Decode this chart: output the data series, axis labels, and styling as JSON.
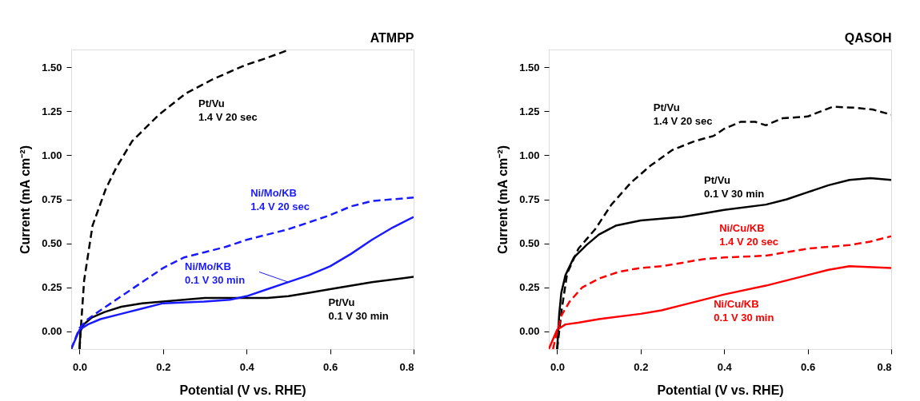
{
  "chart_data": [
    {
      "type": "line",
      "title": "ATMPP",
      "xlabel": "Potential (V vs. RHE)",
      "ylabel": "Current (mA cm⁻²)",
      "xlim": [
        -0.02,
        0.8
      ],
      "ylim": [
        -0.1,
        1.6
      ],
      "xticks": [
        {
          "value": 0,
          "label": "0.0"
        },
        0.2,
        0.4,
        0.6,
        0.8
      ],
      "yticks": [
        {
          "value": 0,
          "label": "0.00"
        },
        0.25,
        {
          "value": 0.5,
          "label": "0.50"
        },
        0.75,
        {
          "value": 1,
          "label": "1.00"
        },
        1.25,
        {
          "value": 1.5,
          "label": "1.50"
        }
      ],
      "grid": false,
      "marker": "none",
      "series": [
        {
          "name": "Pt/Vu\n1.4 V 20 sec",
          "color": "#000000",
          "line_style": "dashed",
          "x": [
            0.0,
            0.004,
            0.011,
            0.031,
            0.063,
            0.088,
            0.126,
            0.19,
            0.254,
            0.318,
            0.395,
            0.446,
            0.503
          ],
          "values": [
            -0.1,
            0.05,
            0.29,
            0.6,
            0.81,
            0.93,
            1.08,
            1.23,
            1.35,
            1.43,
            1.51,
            1.55,
            1.6
          ]
        },
        {
          "name": "Pt/Vu\n0.1 V 30 min",
          "color": "#000000",
          "line_style": "solid",
          "x": [
            0.0,
            0.002,
            0.01,
            0.03,
            0.06,
            0.1,
            0.15,
            0.2,
            0.3,
            0.4,
            0.45,
            0.5,
            0.55,
            0.6,
            0.7,
            0.8
          ],
          "values": [
            -0.1,
            0.0,
            0.04,
            0.08,
            0.11,
            0.14,
            0.16,
            0.17,
            0.19,
            0.19,
            0.19,
            0.2,
            0.22,
            0.24,
            0.28,
            0.31
          ]
        },
        {
          "name": "Ni/Mo/KB\n1.4 V 20 sec",
          "color": "#1a1aff",
          "line_style": "dashed",
          "x": [
            -0.02,
            0.0,
            0.02,
            0.05,
            0.1,
            0.15,
            0.2,
            0.25,
            0.3,
            0.35,
            0.4,
            0.45,
            0.5,
            0.55,
            0.6,
            0.65,
            0.7,
            0.75,
            0.8
          ],
          "values": [
            -0.1,
            0.02,
            0.07,
            0.12,
            0.2,
            0.28,
            0.36,
            0.42,
            0.45,
            0.48,
            0.52,
            0.55,
            0.58,
            0.62,
            0.66,
            0.71,
            0.74,
            0.75,
            0.76
          ]
        },
        {
          "name": "Ni/Mo/KB\n0.1 V 30 min",
          "color": "#1a1aff",
          "line_style": "solid",
          "x": [
            -0.02,
            0.0,
            0.02,
            0.05,
            0.1,
            0.15,
            0.2,
            0.3,
            0.36,
            0.4,
            0.45,
            0.5,
            0.55,
            0.6,
            0.65,
            0.7,
            0.75,
            0.8
          ],
          "values": [
            -0.1,
            0.01,
            0.04,
            0.07,
            0.1,
            0.13,
            0.16,
            0.17,
            0.18,
            0.2,
            0.24,
            0.28,
            0.32,
            0.37,
            0.44,
            0.52,
            0.59,
            0.65
          ]
        }
      ]
    },
    {
      "type": "line",
      "title": "QASOH",
      "xlabel": "Potential (V vs. RHE)",
      "ylabel": "Current (mA cm⁻²)",
      "xlim": [
        -0.02,
        0.8
      ],
      "ylim": [
        -0.1,
        1.6
      ],
      "xticks": [
        {
          "value": 0,
          "label": "0.0"
        },
        0.2,
        0.4,
        0.6,
        0.8
      ],
      "yticks": [
        {
          "value": 0,
          "label": "0.00"
        },
        0.25,
        {
          "value": 0.5,
          "label": "0.50"
        },
        0.75,
        {
          "value": 1,
          "label": "1.00"
        },
        1.25,
        {
          "value": 1.5,
          "label": "1.50"
        }
      ],
      "grid": false,
      "marker": "none",
      "series": [
        {
          "name": "Pt/Vu\n1.4 V 20 sec",
          "color": "#000000",
          "line_style": "dashed",
          "x": [
            0.0,
            0.011,
            0.024,
            0.051,
            0.091,
            0.13,
            0.177,
            0.223,
            0.276,
            0.329,
            0.375,
            0.4,
            0.44,
            0.474,
            0.5,
            0.54,
            0.6,
            0.66,
            0.71,
            0.755,
            0.8
          ],
          "values": [
            -0.1,
            0.125,
            0.33,
            0.47,
            0.58,
            0.72,
            0.845,
            0.94,
            1.03,
            1.08,
            1.11,
            1.15,
            1.19,
            1.19,
            1.17,
            1.21,
            1.22,
            1.275,
            1.27,
            1.26,
            1.23
          ]
        },
        {
          "name": "Pt/Vu\n0.1 V 30 min",
          "color": "#000000",
          "line_style": "solid",
          "x": [
            0.0,
            0.005,
            0.01,
            0.02,
            0.04,
            0.07,
            0.1,
            0.14,
            0.2,
            0.3,
            0.35,
            0.4,
            0.5,
            0.55,
            0.6,
            0.65,
            0.7,
            0.75,
            0.8
          ],
          "values": [
            -0.1,
            0.1,
            0.22,
            0.32,
            0.42,
            0.49,
            0.55,
            0.6,
            0.63,
            0.65,
            0.67,
            0.69,
            0.72,
            0.75,
            0.79,
            0.83,
            0.86,
            0.87,
            0.86
          ]
        },
        {
          "name": "Ni/Cu/KB\n1.4 V 20 sec",
          "color": "#ff0000",
          "line_style": "dashed",
          "x": [
            -0.01,
            0.0,
            0.01,
            0.03,
            0.06,
            0.1,
            0.15,
            0.2,
            0.25,
            0.3,
            0.35,
            0.4,
            0.5,
            0.55,
            0.6,
            0.7,
            0.75,
            0.8
          ],
          "values": [
            -0.1,
            0.0,
            0.09,
            0.17,
            0.25,
            0.3,
            0.34,
            0.36,
            0.37,
            0.39,
            0.41,
            0.42,
            0.43,
            0.45,
            0.47,
            0.49,
            0.51,
            0.54
          ]
        },
        {
          "name": "Ni/Cu/KB\n0.1 V 30 min",
          "color": "#ff0000",
          "line_style": "solid",
          "x": [
            -0.02,
            0.0,
            0.02,
            0.05,
            0.1,
            0.2,
            0.25,
            0.3,
            0.4,
            0.5,
            0.6,
            0.65,
            0.7,
            0.8
          ],
          "values": [
            -0.1,
            0.01,
            0.04,
            0.05,
            0.07,
            0.1,
            0.12,
            0.15,
            0.21,
            0.26,
            0.32,
            0.35,
            0.37,
            0.36
          ]
        }
      ]
    }
  ]
}
